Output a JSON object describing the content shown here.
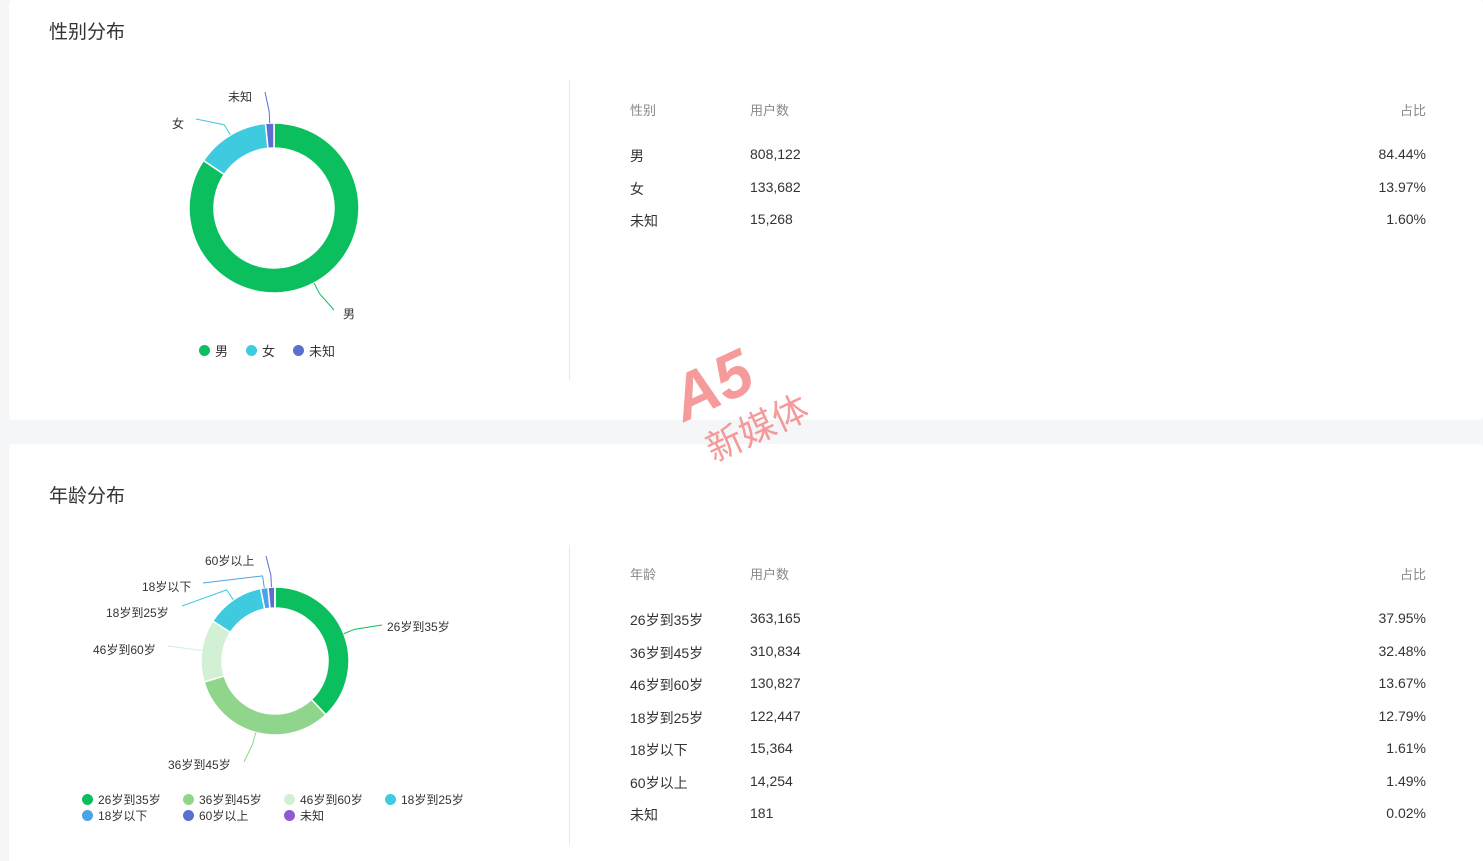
{
  "gender": {
    "title": "性别分布",
    "headers": [
      "性别",
      "用户数",
      "占比"
    ],
    "rows": [
      {
        "label": "男",
        "count": "808,122",
        "pct": "84.44%"
      },
      {
        "label": "女",
        "count": "133,682",
        "pct": "13.97%"
      },
      {
        "label": "未知",
        "count": "15,268",
        "pct": "1.60%"
      }
    ],
    "chart_data": {
      "type": "pie",
      "donut": true,
      "categories": [
        "男",
        "女",
        "未知"
      ],
      "values": [
        808122,
        133682,
        15268
      ],
      "colors": [
        "#0bbf5f",
        "#3ecbe0",
        "#5b6fd0"
      ],
      "legend": "bottom"
    }
  },
  "age": {
    "title": "年龄分布",
    "headers": [
      "年龄",
      "用户数",
      "占比"
    ],
    "rows": [
      {
        "label": "26岁到35岁",
        "count": "363,165",
        "pct": "37.95%"
      },
      {
        "label": "36岁到45岁",
        "count": "310,834",
        "pct": "32.48%"
      },
      {
        "label": "46岁到60岁",
        "count": "130,827",
        "pct": "13.67%"
      },
      {
        "label": "18岁到25岁",
        "count": "122,447",
        "pct": "12.79%"
      },
      {
        "label": "18岁以下",
        "count": "15,364",
        "pct": "1.61%"
      },
      {
        "label": "60岁以上",
        "count": "14,254",
        "pct": "1.49%"
      },
      {
        "label": "未知",
        "count": "181",
        "pct": "0.02%"
      }
    ],
    "chart_data": {
      "type": "pie",
      "donut": true,
      "categories": [
        "26岁到35岁",
        "36岁到45岁",
        "46岁到60岁",
        "18岁到25岁",
        "18岁以下",
        "60岁以上",
        "未知"
      ],
      "values": [
        363165,
        310834,
        130827,
        122447,
        15364,
        14254,
        181
      ],
      "colors": [
        "#0bbf5f",
        "#8fd68c",
        "#d2f0d4",
        "#3ecbe0",
        "#4aa3e8",
        "#5b6fd0",
        "#8f5bd0"
      ],
      "legend": "bottom"
    }
  },
  "watermark": {
    "logo": "A5",
    "text": "新媒体"
  }
}
